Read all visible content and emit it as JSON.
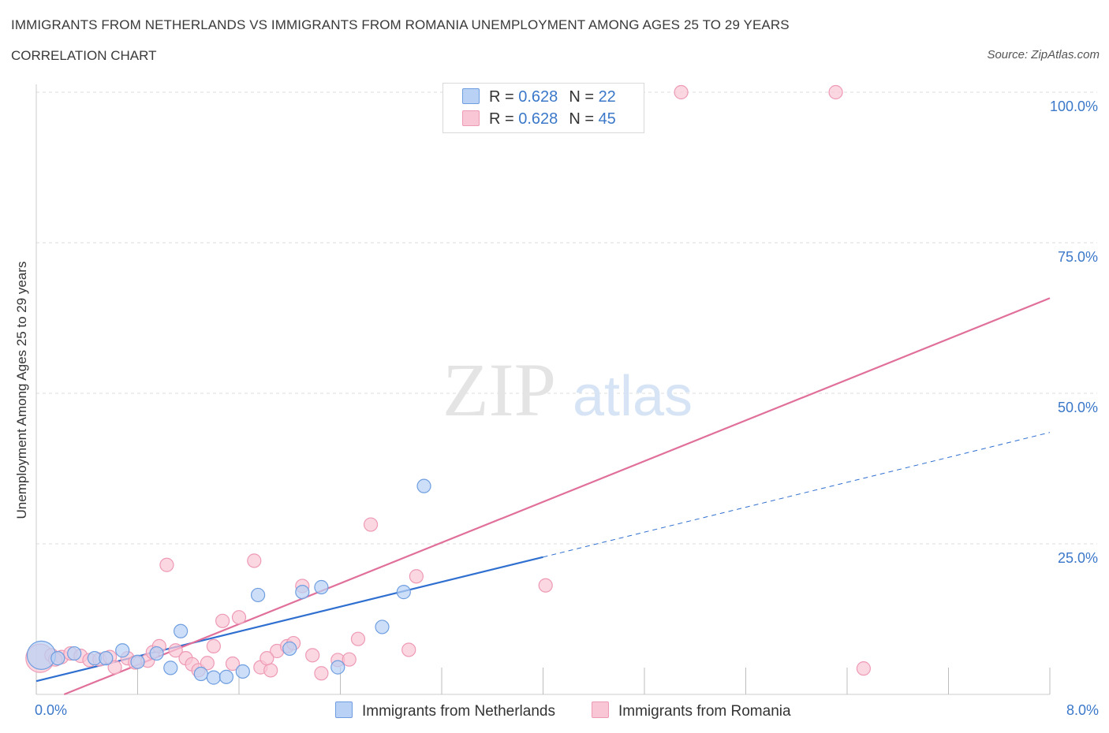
{
  "header": {
    "title": "IMMIGRANTS FROM NETHERLANDS VS IMMIGRANTS FROM ROMANIA UNEMPLOYMENT AMONG AGES 25 TO 29 YEARS",
    "subtitle": "CORRELATION CHART",
    "source": "Source: ZipAtlas.com"
  },
  "watermark": {
    "zip": "ZIP",
    "atlas": "atlas"
  },
  "legend_top": {
    "rows": [
      {
        "r_label": "R =",
        "r_value": "0.628",
        "n_label": "N =",
        "n_value": "22"
      },
      {
        "r_label": "R =",
        "r_value": "0.628",
        "n_label": "N =",
        "n_value": "45"
      }
    ]
  },
  "colors": {
    "netherlands_fill": "#b8d1f5",
    "netherlands_stroke": "#6f9ee0",
    "netherlands_line": "#2f6fd0",
    "romania_fill": "#f9c6d6",
    "romania_stroke": "#ee9ab5",
    "romania_line": "#e0709a",
    "tick_label": "#3b78c9",
    "grid": "#dddddd"
  },
  "chart_data": {
    "type": "scatter",
    "title": "IMMIGRANTS FROM NETHERLANDS VS IMMIGRANTS FROM ROMANIA UNEMPLOYMENT AMONG AGES 25 TO 29 YEARS",
    "xlabel": "",
    "ylabel": "Unemployment Among Ages 25 to 29 years",
    "xlim": [
      0,
      8
    ],
    "ylim": [
      0,
      100
    ],
    "x_tick_labels": [
      "0.0%",
      "8.0%"
    ],
    "y_ticks": [
      25,
      50,
      75,
      100
    ],
    "y_tick_labels": [
      "25.0%",
      "50.0%",
      "75.0%",
      "100.0%"
    ],
    "grid": true,
    "legend_placement": "bottom",
    "series": [
      {
        "name": "Immigrants from Netherlands",
        "points": [
          {
            "x": 0.04,
            "y": 6.5,
            "big": true
          },
          {
            "x": 0.17,
            "y": 6.0
          },
          {
            "x": 0.3,
            "y": 6.8
          },
          {
            "x": 0.46,
            "y": 6.0
          },
          {
            "x": 0.68,
            "y": 7.3
          },
          {
            "x": 0.8,
            "y": 5.4
          },
          {
            "x": 0.95,
            "y": 6.8
          },
          {
            "x": 1.06,
            "y": 4.4
          },
          {
            "x": 1.14,
            "y": 10.5
          },
          {
            "x": 1.3,
            "y": 3.4
          },
          {
            "x": 1.4,
            "y": 2.8
          },
          {
            "x": 1.5,
            "y": 2.9
          },
          {
            "x": 1.63,
            "y": 3.8
          },
          {
            "x": 1.75,
            "y": 16.5
          },
          {
            "x": 2.0,
            "y": 7.6
          },
          {
            "x": 2.1,
            "y": 17.0
          },
          {
            "x": 2.25,
            "y": 17.8
          },
          {
            "x": 2.38,
            "y": 4.5
          },
          {
            "x": 2.73,
            "y": 11.2
          },
          {
            "x": 2.9,
            "y": 17.0
          },
          {
            "x": 3.06,
            "y": 34.6
          },
          {
            "x": 0.55,
            "y": 6.0
          }
        ],
        "trend": {
          "x1": 0,
          "y1": 2.2,
          "x2": 4.0,
          "y2": 22.8,
          "dash_x2": 8.0,
          "dash_y2": 43.5
        }
      },
      {
        "name": "Immigrants from Romania",
        "points": [
          {
            "x": 0.03,
            "y": 6.0,
            "big": true
          },
          {
            "x": 0.12,
            "y": 6.5
          },
          {
            "x": 0.2,
            "y": 6.2
          },
          {
            "x": 0.27,
            "y": 6.8
          },
          {
            "x": 0.35,
            "y": 6.4
          },
          {
            "x": 0.42,
            "y": 5.7
          },
          {
            "x": 0.5,
            "y": 5.8
          },
          {
            "x": 0.58,
            "y": 6.2
          },
          {
            "x": 0.62,
            "y": 4.5
          },
          {
            "x": 0.72,
            "y": 6.0
          },
          {
            "x": 0.78,
            "y": 5.3
          },
          {
            "x": 0.88,
            "y": 5.6
          },
          {
            "x": 0.92,
            "y": 7.0
          },
          {
            "x": 0.97,
            "y": 8.0
          },
          {
            "x": 1.03,
            "y": 21.5
          },
          {
            "x": 1.1,
            "y": 7.3
          },
          {
            "x": 1.18,
            "y": 6.0
          },
          {
            "x": 1.23,
            "y": 5.0
          },
          {
            "x": 1.28,
            "y": 4.0
          },
          {
            "x": 1.35,
            "y": 5.2
          },
          {
            "x": 1.4,
            "y": 8.0
          },
          {
            "x": 1.47,
            "y": 12.2
          },
          {
            "x": 1.55,
            "y": 5.1
          },
          {
            "x": 1.6,
            "y": 12.8
          },
          {
            "x": 1.72,
            "y": 22.2
          },
          {
            "x": 1.77,
            "y": 4.5
          },
          {
            "x": 1.85,
            "y": 4.0
          },
          {
            "x": 1.9,
            "y": 7.2
          },
          {
            "x": 1.98,
            "y": 8.0
          },
          {
            "x": 2.03,
            "y": 8.5
          },
          {
            "x": 2.1,
            "y": 18.0
          },
          {
            "x": 2.18,
            "y": 6.5
          },
          {
            "x": 2.25,
            "y": 3.5
          },
          {
            "x": 2.38,
            "y": 5.7
          },
          {
            "x": 2.47,
            "y": 5.8
          },
          {
            "x": 2.54,
            "y": 9.2
          },
          {
            "x": 2.64,
            "y": 28.2
          },
          {
            "x": 2.94,
            "y": 7.4
          },
          {
            "x": 3.0,
            "y": 19.6
          },
          {
            "x": 4.02,
            "y": 18.1
          },
          {
            "x": 5.09,
            "y": 100.0
          },
          {
            "x": 6.31,
            "y": 100.0
          },
          {
            "x": 6.53,
            "y": 4.3
          },
          {
            "x": 1.82,
            "y": 6.0
          },
          {
            "x": 0.15,
            "y": 5.8
          }
        ],
        "trend": {
          "x1": 0.22,
          "y1": 0.0,
          "x2": 8.0,
          "y2": 65.8
        }
      }
    ]
  },
  "bottom_legend": {
    "items": [
      "Immigrants from Netherlands",
      "Immigrants from Romania"
    ]
  }
}
